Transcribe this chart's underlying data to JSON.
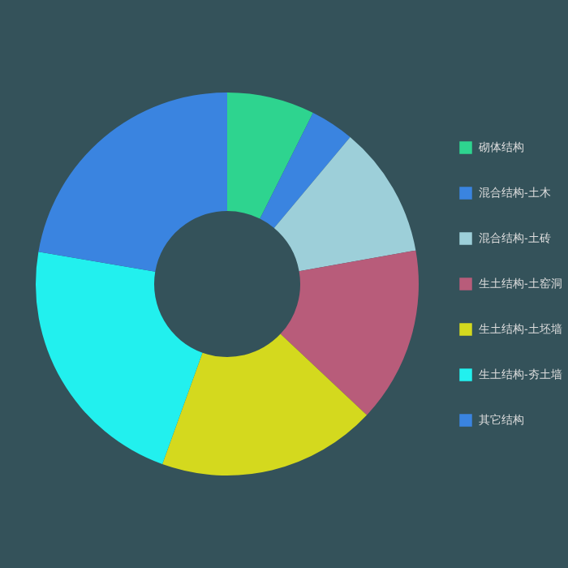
{
  "chart_data": {
    "type": "donut",
    "categories": [
      "砌体结构",
      "混合结构-土木",
      "混合结构-土砖",
      "生土结构-土窑洞",
      "生土结构-土坯墙",
      "生土结构-夯土墙",
      "其它结构"
    ],
    "values": [
      7.4,
      3.7,
      11.1,
      14.8,
      18.5,
      22.2,
      22.3
    ],
    "colors": [
      "#2ed48f",
      "#3a84e0",
      "#9dcfd9",
      "#b85c7a",
      "#d4d91e",
      "#22f0ee",
      "#3a84e0"
    ],
    "legend": "right"
  }
}
